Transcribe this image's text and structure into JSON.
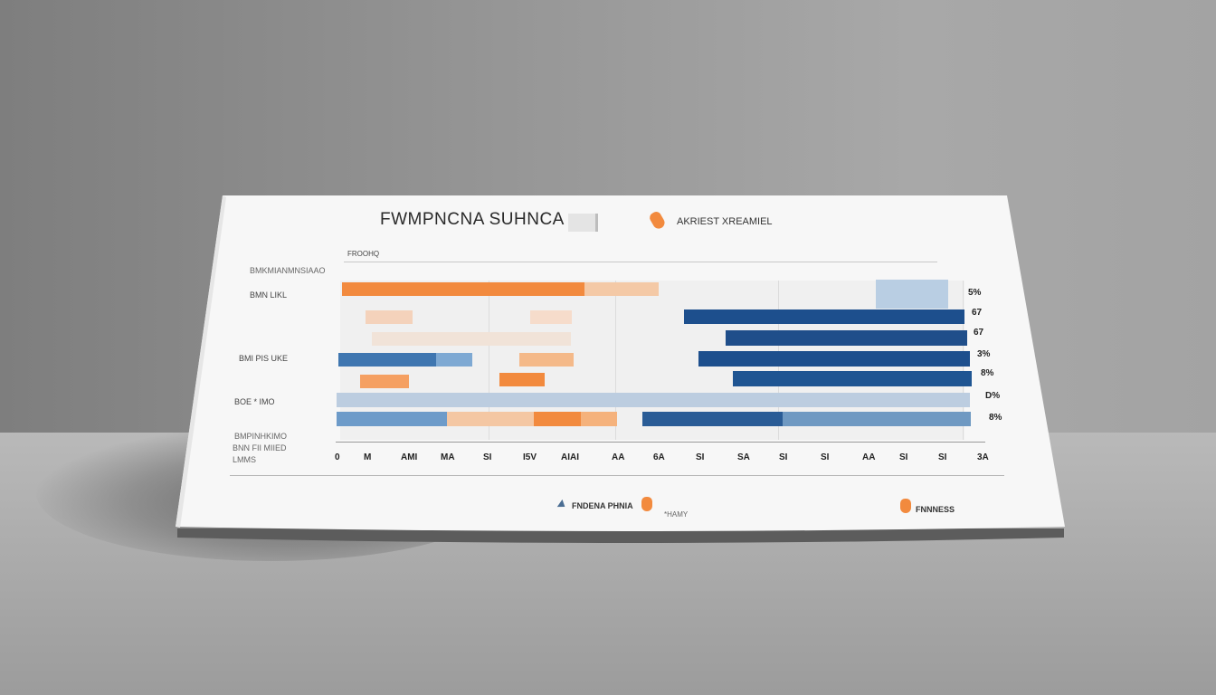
{
  "title": "FWMPNCNA SUHNCA",
  "legend_top": "AKRIEST XREAMIEL",
  "sub_label": "FROOHQ",
  "y_labels": [
    "BMKMIANMNSIAAO",
    "BMN   LIKL",
    "BMI  PIS  UKE",
    "BOE  *  IMO",
    "BMPINHKIMO",
    "BNN FII MIIED",
    "LMMS"
  ],
  "x_ticks": [
    "0",
    "M",
    "AMI",
    "MA",
    "SI",
    "I5V",
    "AIAI",
    "AA",
    "6A",
    "SI",
    "SA",
    "SI",
    "SI",
    "AA",
    "SI",
    "SI",
    "3A"
  ],
  "right_labels": [
    "5%",
    "67",
    "67",
    "3%",
    "8%",
    "D%",
    "8%"
  ],
  "legend_bottom": [
    {
      "label": "FNDENA PHNIA",
      "note": "*HAMY"
    },
    {
      "label": "FNNNESS"
    }
  ],
  "colors": {
    "orange": "#f28a3e",
    "light_orange": "#f4c4a0",
    "navy": "#1e4f8c",
    "steel_blue": "#6f9cc8",
    "pale_blue": "#b9cee3",
    "card": "#f7f7f7"
  }
}
